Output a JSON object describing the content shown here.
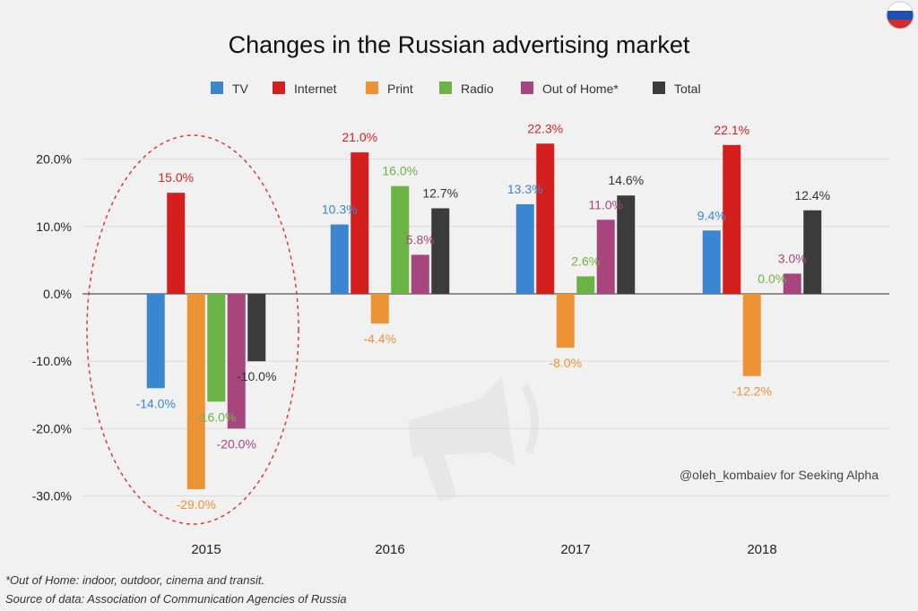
{
  "chart_data": {
    "type": "bar",
    "title": "Changes in the Russian advertising market",
    "categories": [
      "2015",
      "2016",
      "2017",
      "2018"
    ],
    "series": [
      {
        "name": "TV",
        "color": "#3b86d1",
        "values": [
          -14.0,
          10.3,
          13.3,
          9.4
        ],
        "labels": [
          "-14.0%",
          "10.3%",
          "13.3%",
          "9.4%"
        ]
      },
      {
        "name": "Internet",
        "color": "#d51f1f",
        "values": [
          15.0,
          21.0,
          22.3,
          22.1
        ],
        "labels": [
          "15.0%",
          "21.0%",
          "22.3%",
          "22.1%"
        ]
      },
      {
        "name": "Print",
        "color": "#ec9336",
        "values": [
          -29.0,
          -4.4,
          -8.0,
          -12.2
        ],
        "labels": [
          "-29.0%",
          "-4.4%",
          "-8.0%",
          "-12.2%"
        ]
      },
      {
        "name": "Radio",
        "color": "#6ab344",
        "values": [
          -16.0,
          16.0,
          2.6,
          0.0
        ],
        "labels": [
          "-16.0%",
          "16.0%",
          "2.6%",
          "0.0%"
        ]
      },
      {
        "name": "Out of Home*",
        "color": "#a8457f",
        "values": [
          -20.0,
          5.8,
          11.0,
          3.0
        ],
        "labels": [
          "-20.0%",
          "5.8%",
          "11.0%",
          "3.0%"
        ]
      },
      {
        "name": "Total",
        "color": "#3b3b3b",
        "values": [
          -10.0,
          12.7,
          14.6,
          12.4
        ],
        "labels": [
          "-10.0%",
          "12.7%",
          "14.6%",
          "12.4%"
        ]
      }
    ],
    "ylim": [
      -30,
      20
    ],
    "yticks": [
      20,
      10,
      0,
      -10,
      -20,
      -30
    ],
    "ytick_labels": [
      "20.0%",
      "10.0%",
      "0.0%",
      "-10.0%",
      "-20.0%",
      "-30.0%"
    ],
    "legend_position": "top",
    "grid": true,
    "highlight_category": "2015"
  },
  "credit": "@oleh_kombaiev for Seeking Alpha",
  "footnotes": [
    "*Out of Home: indoor, outdoor, cinema and transit.",
    "Source of data: Association of Communication Agencies of Russia"
  ]
}
